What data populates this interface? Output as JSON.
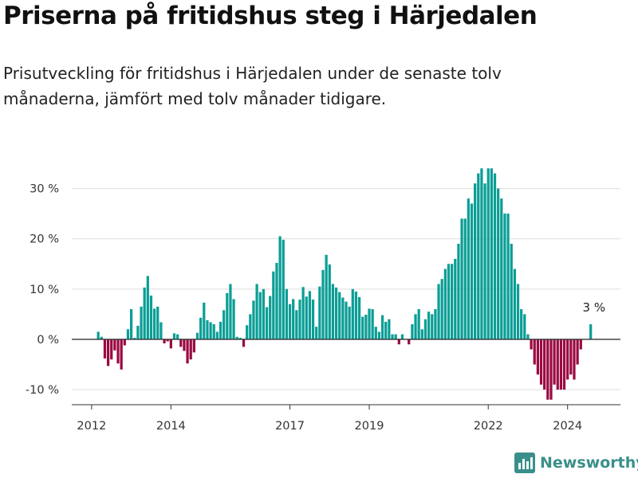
{
  "header": {
    "title": "Priserna på fritidshus steg i Härjedalen",
    "subtitle": "Prisutveckling för fritidshus i Härjedalen under de senaste tolv månaderna, jämfört med tolv månader tidigare."
  },
  "brand": {
    "name": "Newsworthy",
    "icon": "newsworthy-logo-icon"
  },
  "colors": {
    "positive": "#0a9e96",
    "negative": "#9a0a42",
    "grid": "#dddddd",
    "axis": "#333333"
  },
  "chart_data": {
    "type": "bar",
    "title": "Priserna på fritidshus steg i Härjedalen",
    "ylabel": "",
    "xlabel": "",
    "ylim": [
      -13,
      35
    ],
    "xlim": [
      "2011-07",
      "2025-05"
    ],
    "yticks": [
      -10,
      0,
      10,
      20,
      30
    ],
    "ytick_labels": [
      "-10 %",
      "0 %",
      "10 %",
      "20 %",
      "30 %"
    ],
    "xticks": [
      "2012-01",
      "2014-01",
      "2017-01",
      "2019-01",
      "2022-01",
      "2024-01"
    ],
    "xtick_labels": [
      "2012",
      "2014",
      "2017",
      "2019",
      "2022",
      "2024"
    ],
    "grid": true,
    "annotation": {
      "text": "3 %",
      "date": "2024-09"
    },
    "x_start": "2012-03",
    "values": [
      1.5,
      0.5,
      -3.8,
      -5.3,
      -4.0,
      -2.2,
      -4.8,
      -6.0,
      -1.2,
      2.0,
      6.0,
      0.3,
      2.7,
      6.5,
      10.3,
      12.6,
      8.7,
      6.1,
      6.5,
      3.4,
      -0.8,
      -0.4,
      -1.8,
      1.2,
      1.0,
      -1.5,
      -2.3,
      -4.8,
      -4.0,
      -2.6,
      1.3,
      4.3,
      7.3,
      3.8,
      3.4,
      3.0,
      1.5,
      3.5,
      5.8,
      9.2,
      11.0,
      8.0,
      0.5,
      0.3,
      -1.5,
      2.8,
      5.0,
      7.7,
      11.0,
      9.4,
      10.0,
      6.4,
      8.6,
      13.5,
      15.2,
      20.5,
      19.8,
      10.0,
      7.0,
      8.0,
      5.8,
      7.9,
      10.4,
      8.5,
      9.6,
      7.9,
      2.5,
      10.5,
      13.8,
      16.8,
      14.9,
      11.0,
      10.3,
      9.4,
      8.3,
      7.5,
      6.5,
      10.0,
      9.5,
      8.4,
      4.5,
      4.9,
      6.1,
      6.0,
      2.5,
      1.5,
      4.8,
      3.5,
      4.0,
      1.0,
      1.0,
      -1.0,
      1.0,
      0.0,
      -1.0,
      3.0,
      5.0,
      6.0,
      2.0,
      4.0,
      5.5,
      5.0,
      6.0,
      11.0,
      12.0,
      14.0,
      15.0,
      15.0,
      16.0,
      19.0,
      24.0,
      24.0,
      28.0,
      27.0,
      31.0,
      33.0,
      34.0,
      31.0,
      34.0,
      34.0,
      33.0,
      30.0,
      28.0,
      25.0,
      25.0,
      19.0,
      14.0,
      11.0,
      6.0,
      5.0,
      1.0,
      -2.0,
      -5.0,
      -7.0,
      -9.0,
      -10.0,
      -12.0,
      -12.0,
      -9.0,
      -10.0,
      -10.0,
      -10.0,
      -8.0,
      -7.0,
      -8.0,
      -5.0,
      -2.0,
      0.0,
      0.0,
      3.0
    ]
  }
}
